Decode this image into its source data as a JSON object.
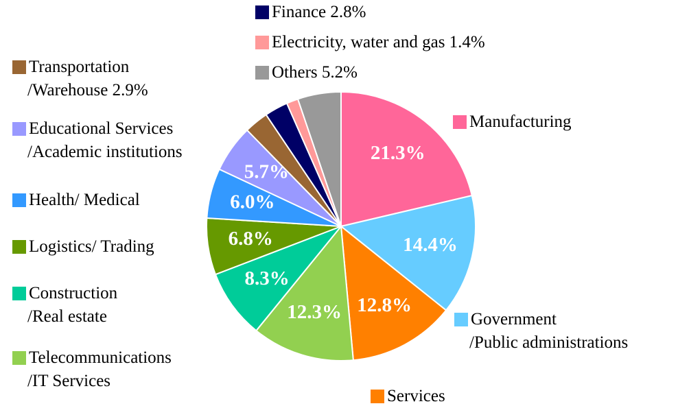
{
  "chart_data": {
    "type": "pie",
    "categories": [
      "Manufacturing",
      "Government\n/Public administrations",
      "Services",
      "Telecommunications\n/IT Services",
      "Construction\n/Real estate",
      "Logistics/ Trading",
      "Health/ Medical",
      "Educational Services\n/Academic institutions",
      "Transportation\n/Warehouse  2.9%",
      "Finance  2.8%",
      "Electricity, water and gas 1.4%",
      "Others  5.2%"
    ],
    "values": [
      21.3,
      14.4,
      12.8,
      12.3,
      8.3,
      6.8,
      6.0,
      5.7,
      2.9,
      2.8,
      1.4,
      5.2
    ],
    "value_labels": [
      "21.3%",
      "14.4%",
      "12.8%",
      "12.3%",
      "8.3%",
      "6.8%",
      "6.0%",
      "5.7%",
      null,
      null,
      null,
      null
    ],
    "colors": [
      "#ff6699",
      "#66ccff",
      "#ff8000",
      "#92d050",
      "#00cc99",
      "#669900",
      "#3399ff",
      "#9999ff",
      "#996633",
      "#000066",
      "#ff9999",
      "#999999"
    ]
  }
}
